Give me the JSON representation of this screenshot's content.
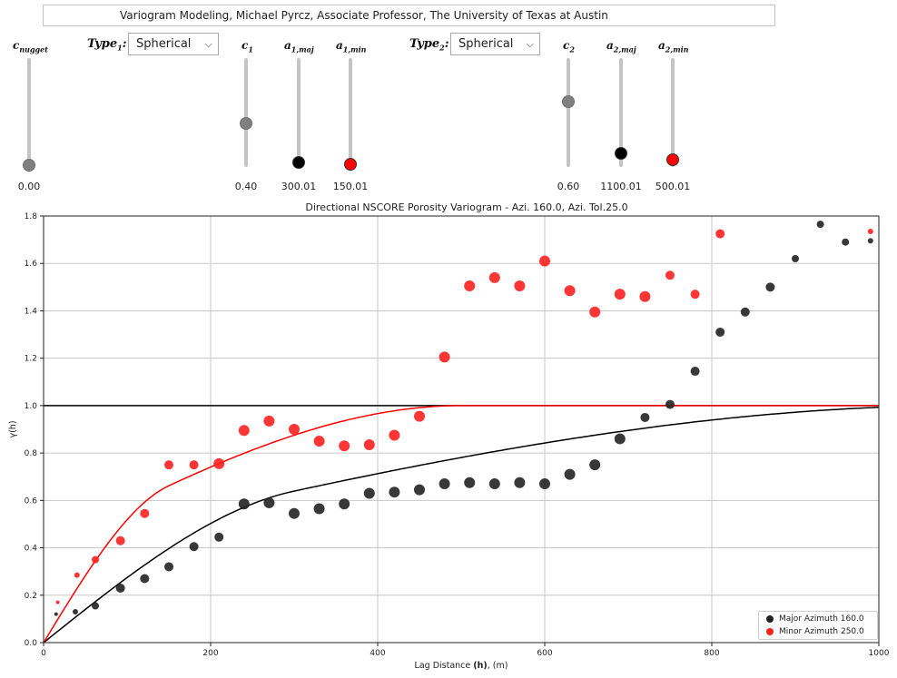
{
  "header": {
    "title": "Variogram Modeling, Michael Pyrcz, Associate Professor, The University of Texas at Austin"
  },
  "controls": {
    "c_nugget": {
      "label_main": "c",
      "label_sub": "nugget",
      "value": "0.00",
      "fraction": 0.0,
      "knob_color": "#808080"
    },
    "type1": {
      "label_main": "Type",
      "label_sub": "1",
      "selected": "Spherical"
    },
    "c1": {
      "label_main": "c",
      "label_sub": "1",
      "value": "0.40",
      "fraction": 0.4,
      "knob_color": "#808080"
    },
    "a1_maj": {
      "label_main": "a",
      "label_sub": "1,maj",
      "value": "300.01",
      "fraction": 0.03,
      "knob_color": "#000000"
    },
    "a1_min": {
      "label_main": "a",
      "label_sub": "1,min",
      "value": "150.01",
      "fraction": 0.01,
      "knob_color": "#ff0000"
    },
    "type2": {
      "label_main": "Type",
      "label_sub": "2",
      "selected": "Spherical"
    },
    "c2": {
      "label_main": "c",
      "label_sub": "2",
      "value": "0.60",
      "fraction": 0.6,
      "knob_color": "#808080"
    },
    "a2_maj": {
      "label_main": "a",
      "label_sub": "2,maj",
      "value": "1100.01",
      "fraction": 0.11,
      "knob_color": "#000000"
    },
    "a2_min": {
      "label_main": "a",
      "label_sub": "2,min",
      "value": "500.01",
      "fraction": 0.05,
      "knob_color": "#ff0000"
    }
  },
  "chart_data": {
    "type": "scatter",
    "title": "Directional NSCORE Porosity Variogram - Azi. 160.0, Azi. Tol.25.0",
    "xlabel_prefix": "Lag Distance ",
    "xlabel_bold": "(h)",
    "xlabel_suffix": ", (m)",
    "ylabel": "γ(h)",
    "xlim": [
      0,
      1000
    ],
    "ylim": [
      0,
      1.8
    ],
    "xticks": [
      0,
      200,
      400,
      600,
      800,
      1000
    ],
    "yticks": [
      0.0,
      0.2,
      0.4,
      0.6,
      0.8,
      1.0,
      1.2,
      1.4,
      1.6,
      1.8
    ],
    "grid": true,
    "legend_position": "lower-right",
    "sill": 1.0,
    "series": [
      {
        "name": "Major Azimuth 160.0",
        "color": "#222222",
        "points": [
          [
            15,
            0.12,
            2
          ],
          [
            38,
            0.13,
            3
          ],
          [
            62,
            0.155,
            4
          ],
          [
            92,
            0.23,
            5
          ],
          [
            121,
            0.27,
            5
          ],
          [
            150,
            0.32,
            5
          ],
          [
            180,
            0.405,
            5
          ],
          [
            210,
            0.445,
            5
          ],
          [
            240,
            0.585,
            6
          ],
          [
            270,
            0.59,
            6
          ],
          [
            300,
            0.545,
            6
          ],
          [
            330,
            0.565,
            6
          ],
          [
            360,
            0.585,
            6
          ],
          [
            390,
            0.63,
            6
          ],
          [
            420,
            0.635,
            6
          ],
          [
            450,
            0.645,
            6
          ],
          [
            480,
            0.67,
            6
          ],
          [
            510,
            0.675,
            6
          ],
          [
            540,
            0.67,
            6
          ],
          [
            570,
            0.675,
            6
          ],
          [
            600,
            0.67,
            6
          ],
          [
            630,
            0.71,
            6
          ],
          [
            660,
            0.75,
            6
          ],
          [
            690,
            0.86,
            6
          ],
          [
            720,
            0.95,
            5
          ],
          [
            750,
            1.005,
            5
          ],
          [
            780,
            1.145,
            5
          ],
          [
            810,
            1.31,
            5
          ],
          [
            840,
            1.395,
            5
          ],
          [
            870,
            1.5,
            5
          ],
          [
            900,
            1.62,
            4
          ],
          [
            930,
            1.765,
            4
          ],
          [
            960,
            1.69,
            4
          ],
          [
            990,
            1.695,
            3
          ]
        ]
      },
      {
        "name": "Minor Azimuth 250.0",
        "color": "#ff2020",
        "points": [
          [
            17,
            0.17,
            2
          ],
          [
            40,
            0.285,
            3
          ],
          [
            62,
            0.35,
            4
          ],
          [
            92,
            0.43,
            5
          ],
          [
            121,
            0.545,
            5
          ],
          [
            150,
            0.75,
            5
          ],
          [
            180,
            0.75,
            5
          ],
          [
            210,
            0.755,
            6
          ],
          [
            240,
            0.895,
            6
          ],
          [
            270,
            0.935,
            6
          ],
          [
            300,
            0.9,
            6
          ],
          [
            330,
            0.85,
            6
          ],
          [
            360,
            0.83,
            6
          ],
          [
            390,
            0.835,
            6
          ],
          [
            420,
            0.875,
            6
          ],
          [
            450,
            0.955,
            6
          ],
          [
            480,
            1.205,
            6
          ],
          [
            510,
            1.505,
            6
          ],
          [
            540,
            1.54,
            6
          ],
          [
            570,
            1.505,
            6
          ],
          [
            600,
            1.61,
            6
          ],
          [
            630,
            1.485,
            6
          ],
          [
            660,
            1.395,
            6
          ],
          [
            690,
            1.47,
            6
          ],
          [
            720,
            1.46,
            6
          ],
          [
            750,
            1.55,
            5
          ],
          [
            780,
            1.47,
            5
          ],
          [
            810,
            1.725,
            5
          ],
          [
            990,
            1.735,
            3
          ]
        ]
      }
    ],
    "models": [
      {
        "name": "major",
        "color": "#000000",
        "nugget": 0.0,
        "c1": 0.4,
        "a1": 300.01,
        "c2": 0.6,
        "a2": 1100.01
      },
      {
        "name": "minor",
        "color": "#ff0000",
        "nugget": 0.0,
        "c1": 0.4,
        "a1": 150.01,
        "c2": 0.6,
        "a2": 500.01
      }
    ]
  }
}
